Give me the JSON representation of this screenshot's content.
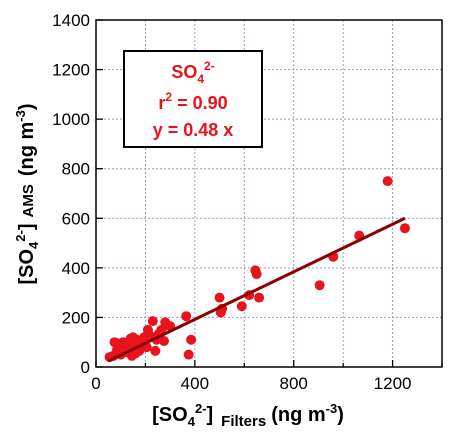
{
  "chart_data": {
    "type": "scatter",
    "xlim": [
      0,
      1400
    ],
    "ylim": [
      0,
      1400
    ],
    "x_ticks": [
      0,
      400,
      800,
      1200
    ],
    "y_ticks": [
      0,
      200,
      400,
      600,
      800,
      1000,
      1200,
      1400
    ],
    "grid": true,
    "xlabel": {
      "main": "[SO",
      "sub": "4",
      "sup": "2-",
      "bracket": "]",
      "tag": "Filters",
      "unit_main": "(ng m",
      "unit_sup": "-3",
      "unit_end": ")"
    },
    "ylabel": {
      "main": "[SO",
      "sub": "4",
      "sup": "2-",
      "bracket": "]",
      "tag": "AMS",
      "unit_main": "(ng m",
      "unit_sup": "-3",
      "unit_end": ")"
    },
    "annotation": {
      "species_main": "SO",
      "species_sub": "4",
      "species_sup": "2-",
      "r2_main": "r",
      "r2_sup": "2",
      "r2_value": " = 0.90",
      "fit_text": "y = 0.48 x"
    },
    "fit": {
      "slope": 0.48,
      "x_range": [
        50,
        1250
      ]
    },
    "points": [
      {
        "x": 55,
        "y": 40
      },
      {
        "x": 70,
        "y": 45
      },
      {
        "x": 75,
        "y": 100
      },
      {
        "x": 85,
        "y": 70
      },
      {
        "x": 90,
        "y": 95
      },
      {
        "x": 100,
        "y": 50
      },
      {
        "x": 105,
        "y": 85
      },
      {
        "x": 110,
        "y": 100
      },
      {
        "x": 120,
        "y": 60
      },
      {
        "x": 125,
        "y": 90
      },
      {
        "x": 130,
        "y": 75
      },
      {
        "x": 140,
        "y": 115
      },
      {
        "x": 145,
        "y": 45
      },
      {
        "x": 150,
        "y": 120
      },
      {
        "x": 155,
        "y": 95
      },
      {
        "x": 160,
        "y": 55
      },
      {
        "x": 165,
        "y": 110
      },
      {
        "x": 170,
        "y": 80
      },
      {
        "x": 175,
        "y": 65
      },
      {
        "x": 185,
        "y": 105
      },
      {
        "x": 195,
        "y": 120
      },
      {
        "x": 205,
        "y": 80
      },
      {
        "x": 210,
        "y": 150
      },
      {
        "x": 220,
        "y": 125
      },
      {
        "x": 230,
        "y": 185
      },
      {
        "x": 240,
        "y": 65
      },
      {
        "x": 245,
        "y": 110
      },
      {
        "x": 255,
        "y": 135
      },
      {
        "x": 265,
        "y": 150
      },
      {
        "x": 275,
        "y": 105
      },
      {
        "x": 280,
        "y": 180
      },
      {
        "x": 300,
        "y": 165
      },
      {
        "x": 365,
        "y": 205
      },
      {
        "x": 375,
        "y": 50
      },
      {
        "x": 385,
        "y": 110
      },
      {
        "x": 500,
        "y": 280
      },
      {
        "x": 505,
        "y": 220
      },
      {
        "x": 510,
        "y": 235
      },
      {
        "x": 590,
        "y": 245
      },
      {
        "x": 620,
        "y": 290
      },
      {
        "x": 645,
        "y": 390
      },
      {
        "x": 650,
        "y": 375
      },
      {
        "x": 660,
        "y": 280
      },
      {
        "x": 905,
        "y": 330
      },
      {
        "x": 960,
        "y": 445
      },
      {
        "x": 1065,
        "y": 530
      },
      {
        "x": 1180,
        "y": 750
      },
      {
        "x": 1250,
        "y": 560
      }
    ],
    "colors": {
      "points": "#e8141c",
      "fit": "#8b0000",
      "grid": "#9a9ad6",
      "annotation": "#e8141c"
    }
  }
}
